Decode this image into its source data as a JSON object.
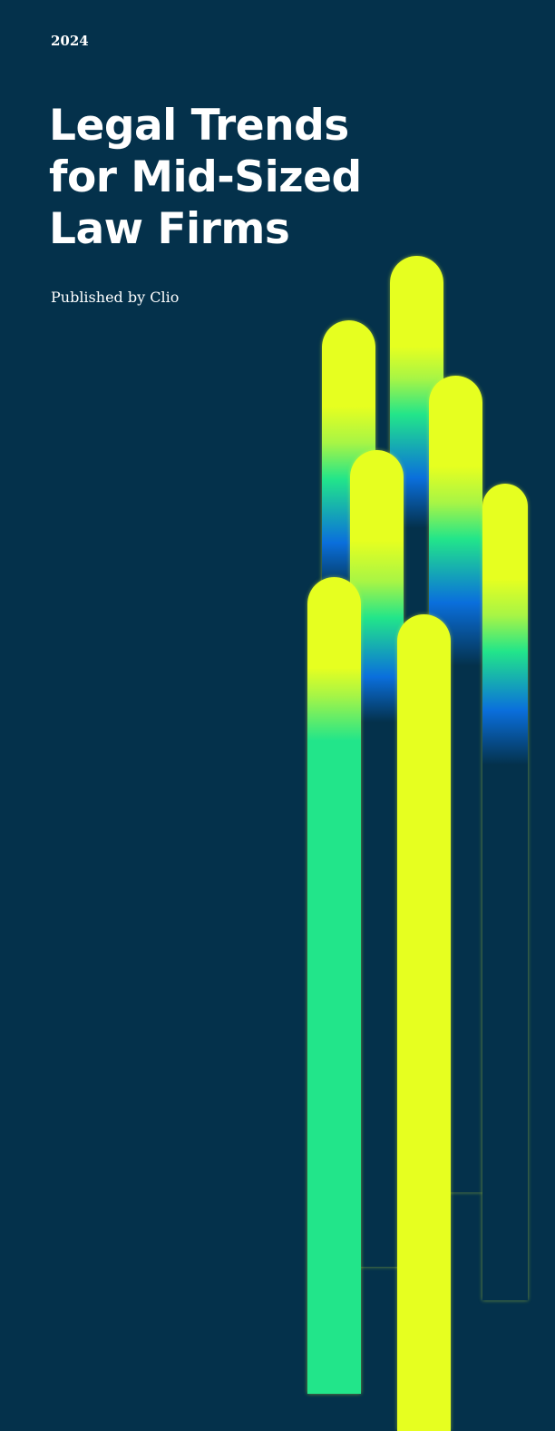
{
  "cover": {
    "year": "2024",
    "title_lines": [
      "Legal Trends",
      "for Mid-Sized",
      "Law Firms"
    ],
    "publisher": "Published by Clio"
  },
  "colors": {
    "background": "#04314b",
    "accent_yellow": "#e6ff20",
    "accent_green": "#22e58a",
    "accent_blue": "#0a6fdc"
  }
}
